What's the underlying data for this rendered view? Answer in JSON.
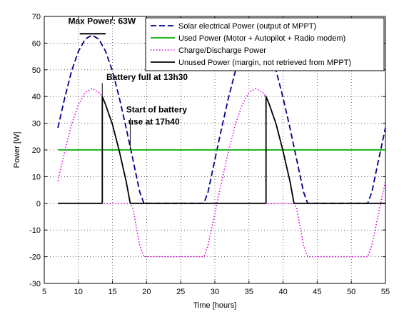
{
  "chart_data": {
    "type": "line",
    "title": "",
    "xlabel": "Time [hours]",
    "ylabel": "Power [W]",
    "xlim": [
      5,
      55
    ],
    "ylim": [
      -30,
      70
    ],
    "xticks": [
      "5",
      "10",
      "15",
      "20",
      "25",
      "30",
      "35",
      "40",
      "45",
      "50",
      "55"
    ],
    "yticks": [
      "-30",
      "-20",
      "-10",
      "0",
      "10",
      "20",
      "30",
      "40",
      "50",
      "60",
      "70"
    ],
    "grid": "dotted",
    "legend_position": "top-right",
    "series": [
      {
        "name": "Solar electrical Power (output of MPPT)",
        "color": "#00008b",
        "style": "dashed",
        "x": [
          7,
          8,
          9,
          10,
          11,
          12,
          13,
          14,
          15,
          16,
          17,
          18,
          19,
          19.6,
          20,
          28.4,
          29,
          30,
          31,
          32,
          33,
          34,
          35,
          36,
          37,
          38,
          39,
          40,
          41,
          42,
          43,
          43.6,
          44,
          52.4,
          53,
          54,
          55
        ],
        "y": [
          28.3,
          39.5,
          49.5,
          56.9,
          61.5,
          63,
          61.5,
          56.9,
          49.5,
          39.5,
          28.3,
          16.3,
          4.2,
          0,
          0,
          0,
          4.2,
          16.3,
          28.3,
          39.5,
          49.5,
          56.9,
          61.5,
          63,
          61.5,
          56.9,
          49.5,
          39.5,
          28.3,
          16.3,
          4.2,
          0,
          0,
          0,
          4.2,
          16.3,
          28.3
        ]
      },
      {
        "name": "Used Power (Motor + Autopilot + Radio modem)",
        "color": "#00b000",
        "style": "solid",
        "x": [
          7,
          55
        ],
        "y": [
          20,
          20
        ]
      },
      {
        "name": "Charge/Discharge Power",
        "color": "#e000e0",
        "style": "dotted",
        "x": [
          7,
          8,
          9,
          10,
          11,
          12,
          13,
          13.5,
          13.5,
          17.6,
          18,
          19,
          19.6,
          20,
          28.4,
          29,
          30,
          31,
          32,
          33,
          34,
          35,
          36,
          37,
          37.5,
          37.5,
          41.6,
          42,
          43,
          43.6,
          44,
          52.4,
          53,
          54,
          55
        ],
        "y": [
          8.3,
          19.5,
          29.5,
          36.9,
          41.5,
          43,
          41.5,
          40,
          0,
          0,
          -2,
          -15.8,
          -20,
          -20,
          -20,
          -15.8,
          -3.7,
          8.3,
          19.5,
          29.5,
          36.9,
          41.5,
          43,
          41.5,
          40,
          0,
          0,
          -2,
          -15.8,
          -20,
          -20,
          -20,
          -15.8,
          -3.7,
          8.3
        ]
      },
      {
        "name": "Unused Power (margin, not retrieved from MPPT)",
        "color": "#000000",
        "style": "solid",
        "x": [
          7,
          13.5,
          13.5,
          14,
          15,
          16,
          17,
          17.6,
          18,
          37.5,
          37.5,
          38,
          39,
          40,
          41,
          41.6,
          42,
          55
        ],
        "y": [
          0,
          0,
          40,
          36.9,
          29.5,
          19.5,
          8.3,
          0,
          0,
          0,
          40,
          36.9,
          29.5,
          19.5,
          8.3,
          0,
          0,
          0
        ]
      }
    ],
    "annotations": [
      {
        "text": "Max Power: 63W",
        "x": 8.5,
        "y": 67.2
      },
      {
        "text": "Battery full at 13h30",
        "x": 14.1,
        "y": 46.2
      },
      {
        "text": "Start of battery",
        "x": 17.0,
        "y": 34
      },
      {
        "text": "use at 17h40",
        "x": 17.3,
        "y": 29.5
      }
    ],
    "marker_lines": [
      {
        "x1": 10.2,
        "y1": 63.5,
        "x2": 14.0,
        "y2": 63.5,
        "stroke_width": 2
      },
      {
        "x1": 13.5,
        "y1": 45,
        "x2": 13.5,
        "y2": 40,
        "stroke_width": 1
      },
      {
        "x1": 17.6,
        "y1": 32,
        "x2": 17.6,
        "y2": 20,
        "stroke_width": 1
      }
    ]
  }
}
